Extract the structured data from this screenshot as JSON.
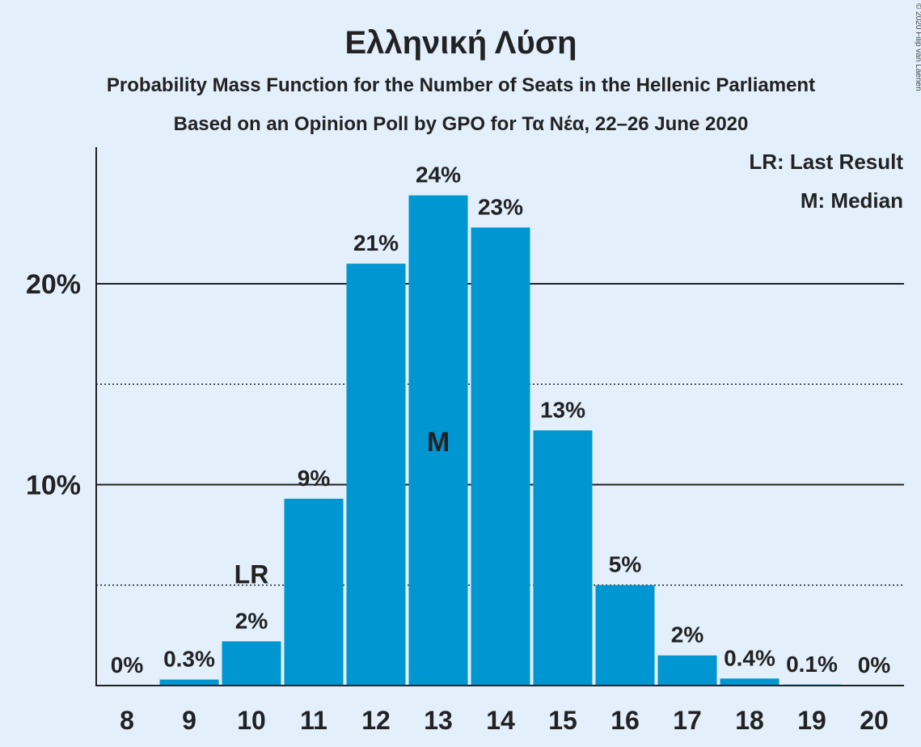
{
  "chart_data": {
    "type": "bar",
    "title": "Ελληνική Λύση",
    "subtitle_1": "Probability Mass Function for the Number of Seats in the Hellenic Parliament",
    "subtitle_2": "Based on an Opinion Poll by GPO for Τα Νέα, 22–26 June 2020",
    "copyright": "© 2020 Filip van Laenen",
    "legend": [
      "LR: Last Result",
      "M: Median"
    ],
    "legend_placement": "top-right",
    "categories": [
      "8",
      "9",
      "10",
      "11",
      "12",
      "13",
      "14",
      "15",
      "16",
      "17",
      "18",
      "19",
      "20"
    ],
    "values": [
      0,
      0.3,
      2.2,
      9.3,
      21.0,
      24.4,
      22.8,
      12.7,
      5.0,
      1.5,
      0.35,
      0.05,
      0
    ],
    "data_labels": [
      "0%",
      "0.3%",
      "2%",
      "9%",
      "21%",
      "24%",
      "23%",
      "13%",
      "5%",
      "2%",
      "0.4%",
      "0.1%",
      "0%"
    ],
    "y_ticks": [
      {
        "value": 10,
        "label": "10%"
      },
      {
        "value": 20,
        "label": "20%"
      }
    ],
    "minor_gridlines": [
      5,
      15
    ],
    "ylim": [
      0,
      26.8
    ],
    "last_result": {
      "category": "10",
      "label": "LR",
      "marker_value": 5
    },
    "median": {
      "category": "13",
      "label": "M"
    },
    "colors": {
      "bar": "#0096d2",
      "background": "#e3f0fc",
      "text": "#222222",
      "median_text": "#e3f0fc"
    }
  }
}
